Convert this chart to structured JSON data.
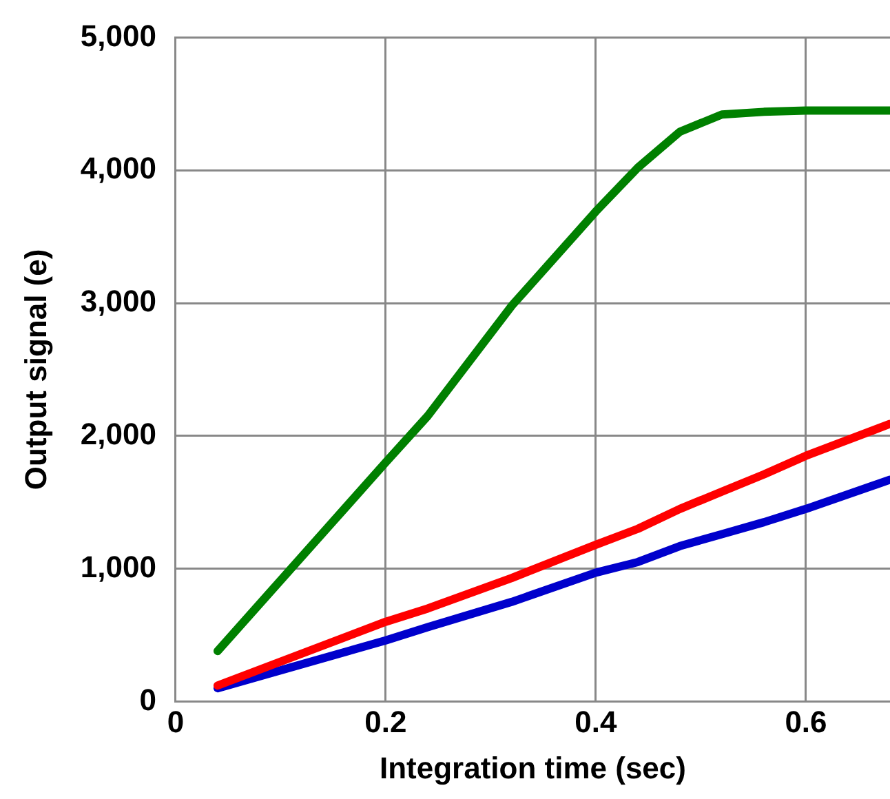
{
  "chart_data": {
    "type": "line",
    "xlabel": "Integration time (sec)",
    "ylabel": "Output signal (e)",
    "x": [
      0.04,
      0.2,
      0.24,
      0.32,
      0.4,
      0.44,
      0.48,
      0.52,
      0.56,
      0.6,
      0.68
    ],
    "series": [
      {
        "color": "#008000",
        "values": [
          380,
          1800,
          2150,
          2980,
          3690,
          4020,
          4290,
          4420,
          4440,
          4450,
          4450
        ]
      },
      {
        "color": "#ff0000",
        "values": [
          120,
          600,
          700,
          930,
          1180,
          1300,
          1450,
          1580,
          1710,
          1850,
          2090
        ]
      },
      {
        "color": "#0000cc",
        "values": [
          100,
          460,
          560,
          750,
          970,
          1050,
          1170,
          1260,
          1350,
          1450,
          1670
        ]
      }
    ],
    "xlim": [
      0,
      0.68
    ],
    "xticks": [
      0,
      0.2,
      0.4,
      0.6
    ],
    "ylim": [
      0,
      5000
    ],
    "yticks": [
      0,
      {
        "value": 1000,
        "label": "1,000"
      },
      {
        "value": 2000,
        "label": "2,000"
      },
      {
        "value": 3000,
        "label": "3,000"
      },
      {
        "value": 4000,
        "label": "4,000"
      },
      {
        "value": 5000,
        "label": "5,000"
      }
    ],
    "grid": true,
    "legend": false,
    "marker": "none",
    "line_style": "solid"
  }
}
